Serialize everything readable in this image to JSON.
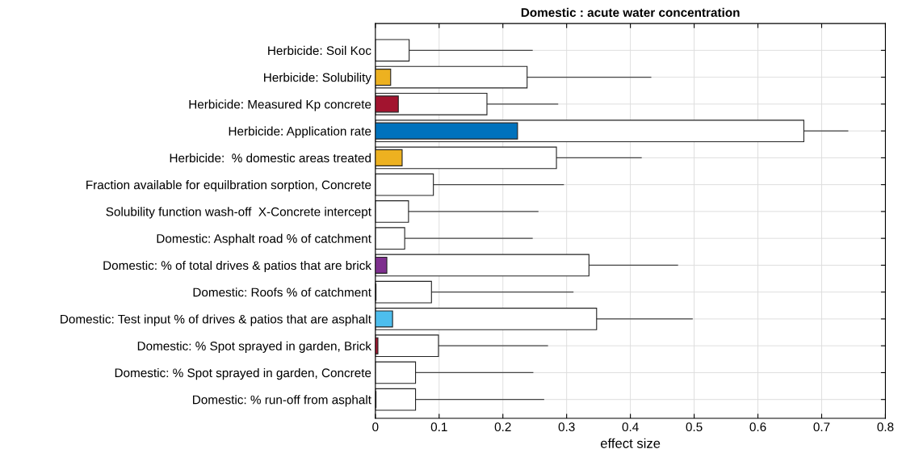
{
  "chart_data": {
    "type": "bar",
    "orientation": "horizontal",
    "title": "Domestic : acute water concentration",
    "xlabel": "effect size",
    "categories": [
      "Herbicide: Soil Koc",
      "Herbicide: Solubility",
      "Herbicide: Measured Kp concrete",
      "Herbicide: Application rate",
      "Herbicide:  % domestic areas treated",
      "Fraction available for equilbration sorption, Concrete",
      "Solubility function wash-off  X-Concrete intercept",
      "Domestic: Asphalt road % of catchment",
      "Domestic: % of total drives & patios that are brick",
      "Domestic: Roofs % of catchment",
      "Domestic: Test input % of drives & patios that are asphalt",
      "Domestic: % Spot sprayed in garden, Brick",
      "Domestic: % Spot sprayed in garden, Concrete",
      "Domestic: % run-off from asphalt"
    ],
    "series": [
      {
        "color": "#ffffff",
        "values": [
          0.053,
          0.238,
          0.175,
          0.672,
          0.284,
          0.091,
          0.052,
          0.046,
          0.335,
          0.088,
          0.347,
          0.099,
          0.063,
          0.063
        ],
        "errors": [
          [
            0.053,
            0.246
          ],
          [
            0.238,
            0.432
          ],
          [
            0.175,
            0.286
          ],
          [
            0.672,
            0.741
          ],
          [
            0.284,
            0.417
          ],
          [
            0.091,
            0.295
          ],
          [
            0.052,
            0.255
          ],
          [
            0.046,
            0.246
          ],
          [
            0.335,
            0.474
          ],
          [
            0.088,
            0.31
          ],
          [
            0.347,
            0.497
          ],
          [
            0.099,
            0.27
          ],
          [
            0.063,
            0.247
          ],
          [
            0.063,
            0.264
          ]
        ]
      },
      {
        "colors": [
          "#ffffff",
          "#edb120",
          "#a2142f",
          "#0072bd",
          "#edb120",
          "#ffffff",
          "#ffffff",
          "#ffffff",
          "#7e2f8e",
          "#333333",
          "#4dbeee",
          "#a2142f",
          "#ffffff",
          "#333333"
        ],
        "values": [
          null,
          0.024,
          0.036,
          0.223,
          0.042,
          null,
          null,
          null,
          0.018,
          0.001,
          0.027,
          0.004,
          null,
          0.001
        ]
      }
    ],
    "xlim": [
      0,
      0.8
    ],
    "xticks": [
      0,
      0.1,
      0.2,
      0.3,
      0.4,
      0.5,
      0.6,
      0.7,
      0.8
    ],
    "grid": true,
    "legend": false
  }
}
